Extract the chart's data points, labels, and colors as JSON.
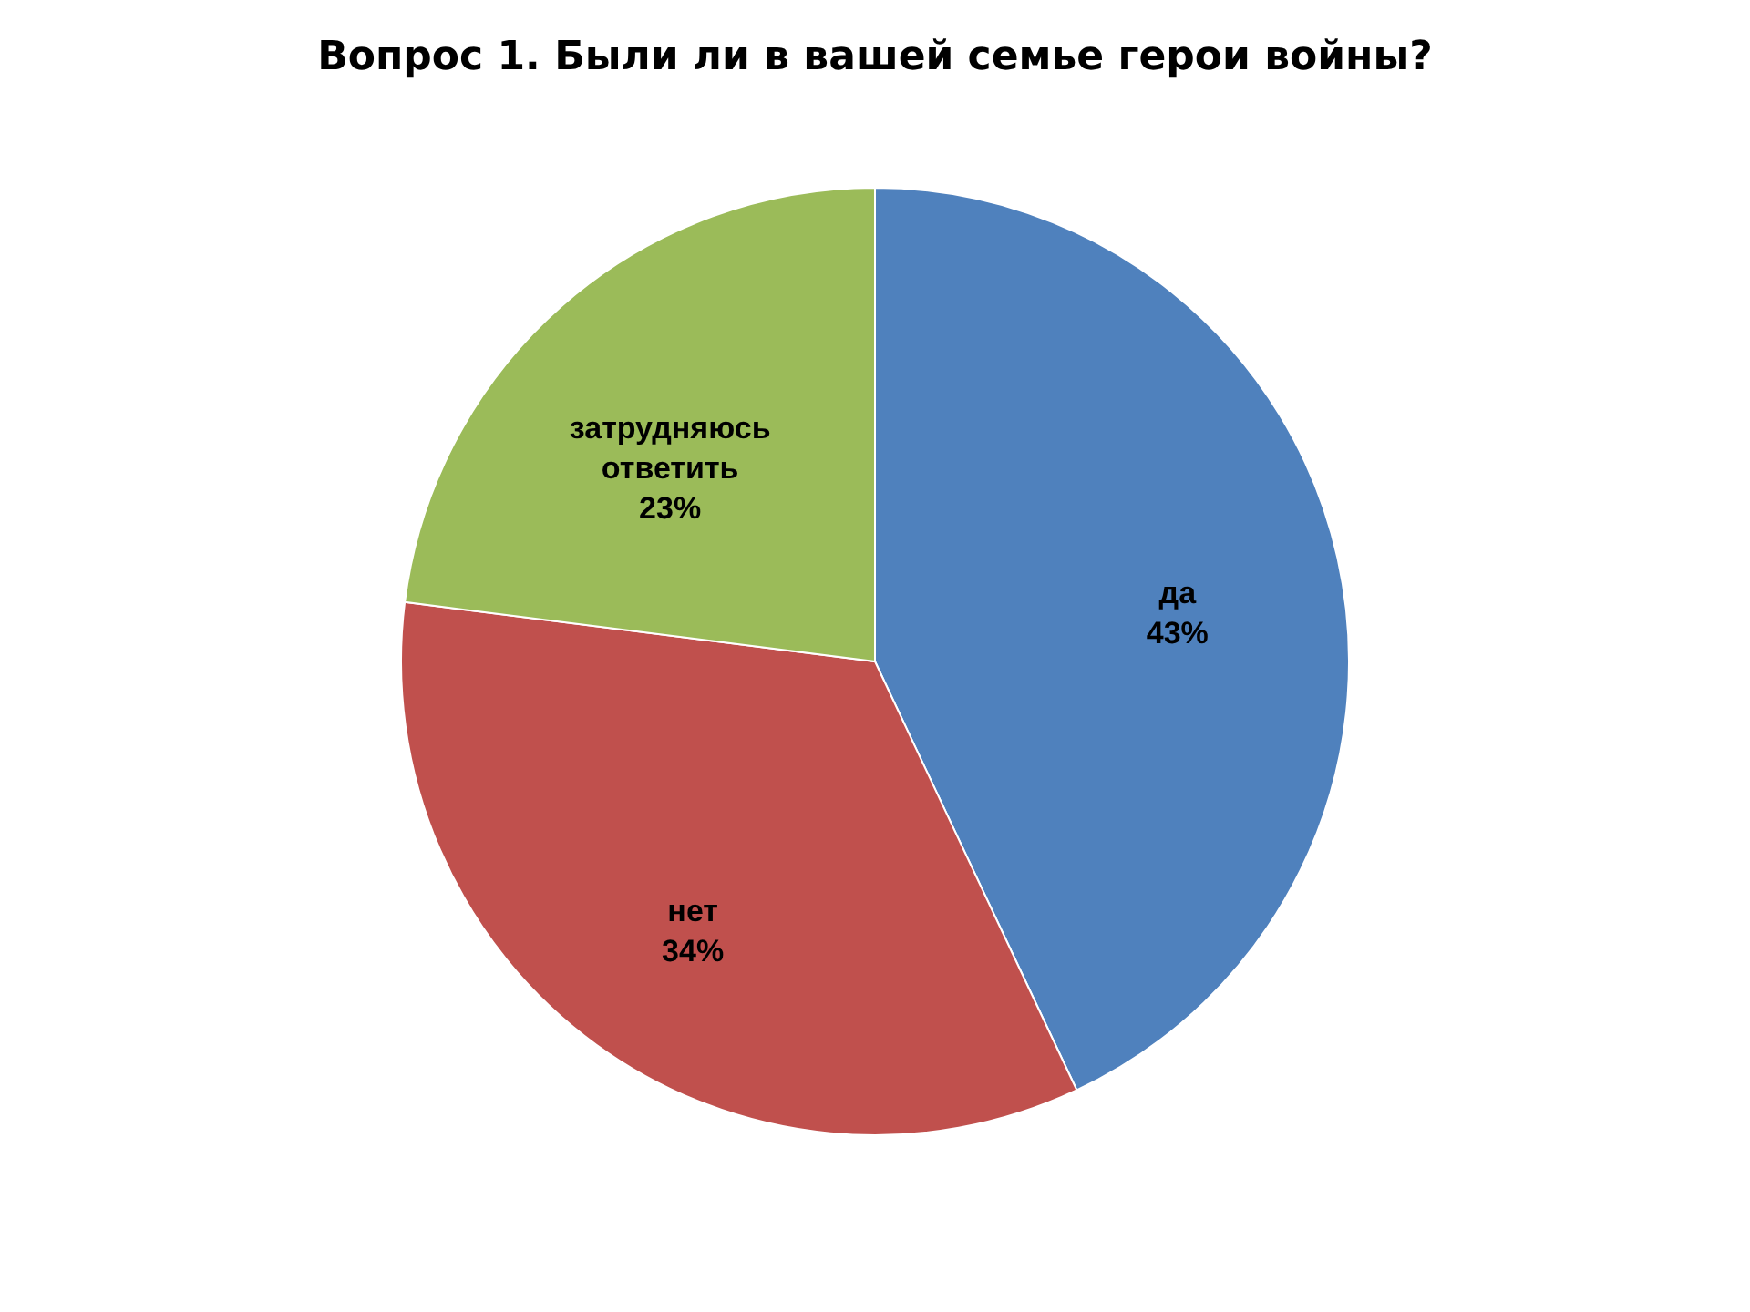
{
  "chart_data": {
    "type": "pie",
    "title": "Вопрос 1. Были ли в вашей семье герои войны?",
    "categories": [
      "да",
      "нет",
      "затрудняюсь ответить"
    ],
    "values": [
      43,
      34,
      23
    ],
    "value_labels": [
      "43%",
      "34%",
      "23%"
    ],
    "colors": [
      "#4f81bd",
      "#c0504d",
      "#9bbb59"
    ],
    "legend": false
  }
}
